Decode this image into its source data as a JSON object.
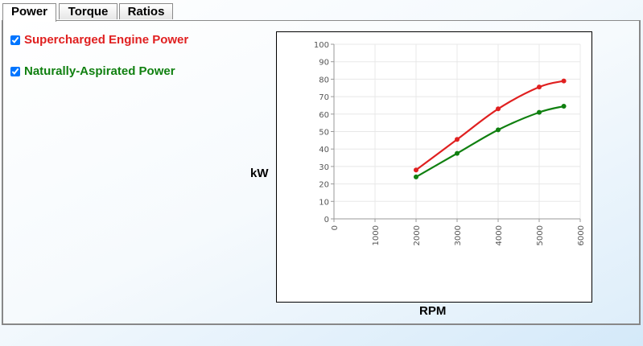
{
  "tabs": [
    {
      "label": "Power",
      "active": true
    },
    {
      "label": "Torque",
      "active": false
    },
    {
      "label": "Ratios",
      "active": false
    }
  ],
  "legend": [
    {
      "label": "Supercharged Engine Power",
      "checked": true,
      "color": "#e02020"
    },
    {
      "label": "Naturally-Aspirated Power",
      "checked": true,
      "color": "#108010"
    }
  ],
  "axes": {
    "ylabel": "kW",
    "xlabel": "RPM"
  },
  "chart_data": {
    "type": "line",
    "xlabel": "RPM",
    "ylabel": "kW",
    "xlim": [
      0,
      6000
    ],
    "ylim": [
      0,
      100
    ],
    "xticks": [
      "0",
      "1000",
      "2000",
      "3000",
      "4000",
      "5000",
      "6000"
    ],
    "yticks": [
      "0",
      "10",
      "20",
      "30",
      "40",
      "50",
      "60",
      "70",
      "80",
      "90",
      "100"
    ],
    "grid": true,
    "series": [
      {
        "name": "Supercharged Engine Power",
        "color": "#e02020",
        "x": [
          2000,
          3000,
          4000,
          5000,
          5600
        ],
        "values": [
          28,
          45.5,
          63,
          75.5,
          79
        ]
      },
      {
        "name": "Naturally-Aspirated Power",
        "color": "#108010",
        "x": [
          2000,
          3000,
          4000,
          5000,
          5600
        ],
        "values": [
          24,
          37.5,
          51,
          61,
          64.5
        ]
      }
    ]
  }
}
